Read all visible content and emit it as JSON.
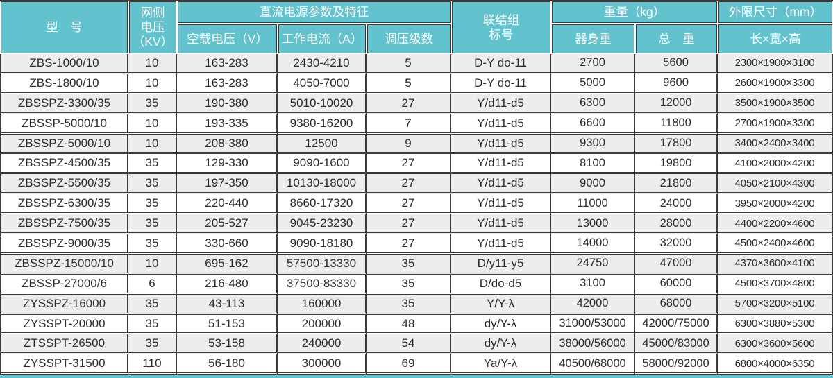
{
  "colors": {
    "header_bg": "#62C3CE",
    "header_text": "#FFFFFF",
    "row_alt_bg": "#EDEDED",
    "row_bg": "#FFFFFF",
    "border": "#3A3A3A",
    "body_text": "#2B2B2B",
    "accent_strip": "#62C3CE"
  },
  "table": {
    "header": {
      "model": "型　号",
      "grid_voltage": "网侧\n电压\n（KV）",
      "dc_group": "直流电源参数及特征",
      "no_load_voltage": "空载电压（V）",
      "working_current": "工作电流（A）",
      "regulation_steps": "调压级数",
      "connection_group": "联结组\n标号",
      "weight_group": "重量（kg）",
      "body_weight": "器身重",
      "total_weight": "总　重",
      "dimensions_group": "外限尺寸（mm）",
      "dimensions": "长×宽×高"
    },
    "rows": [
      {
        "model": "ZBS-1000/10",
        "grid_voltage": "10",
        "no_load_voltage": "163-283",
        "working_current": "2430-4210",
        "regulation_steps": "5",
        "connection_group": "D-Y do-11",
        "body_weight": "2700",
        "total_weight": "5600",
        "dimensions": "2300×1900×3100"
      },
      {
        "model": "ZBS-1800/10",
        "grid_voltage": "10",
        "no_load_voltage": "163-283",
        "working_current": "4050-7000",
        "regulation_steps": "5",
        "connection_group": "D-Y do-11",
        "body_weight": "5000",
        "total_weight": "9600",
        "dimensions": "2600×1900×3300"
      },
      {
        "model": "ZBSSPZ-3300/35",
        "grid_voltage": "35",
        "no_load_voltage": "190-380",
        "working_current": "5010-10020",
        "regulation_steps": "27",
        "connection_group": "Y/d11-d5",
        "body_weight": "6300",
        "total_weight": "12000",
        "dimensions": "3500×1900×3500"
      },
      {
        "model": "ZBSSP-5000/10",
        "grid_voltage": "10",
        "no_load_voltage": "193-335",
        "working_current": "9380-16200",
        "regulation_steps": "7",
        "connection_group": "Y/d11-d5",
        "body_weight": "6600",
        "total_weight": "11800",
        "dimensions": "2700×1900×3300"
      },
      {
        "model": "ZBSSPZ-5000/10",
        "grid_voltage": "10",
        "no_load_voltage": "208-380",
        "working_current": "12500",
        "regulation_steps": "9",
        "connection_group": "Y/d11-d5",
        "body_weight": "9300",
        "total_weight": "17800",
        "dimensions": "3400×2400×3400"
      },
      {
        "model": "ZBSSPZ-4500/35",
        "grid_voltage": "35",
        "no_load_voltage": "129-330",
        "working_current": "9090-1600",
        "regulation_steps": "27",
        "connection_group": "Y/d11-d5",
        "body_weight": "8100",
        "total_weight": "19800",
        "dimensions": "4100×2000×4200"
      },
      {
        "model": "ZBSSPZ-5500/35",
        "grid_voltage": "35",
        "no_load_voltage": "197-350",
        "working_current": "10130-18000",
        "regulation_steps": "27",
        "connection_group": "Y/d11-d5",
        "body_weight": "9000",
        "total_weight": "21800",
        "dimensions": "4050×2100×4300"
      },
      {
        "model": "ZBSSPZ-6300/35",
        "grid_voltage": "35",
        "no_load_voltage": "220-440",
        "working_current": "8660-17320",
        "regulation_steps": "27",
        "connection_group": "Y/d11-d5",
        "body_weight": "11000",
        "total_weight": "24000",
        "dimensions": "3950×2000×4200"
      },
      {
        "model": "ZBSSPZ-7500/35",
        "grid_voltage": "35",
        "no_load_voltage": "205-527",
        "working_current": "9045-23230",
        "regulation_steps": "27",
        "connection_group": "Y/d11-d5",
        "body_weight": "13000",
        "total_weight": "28000",
        "dimensions": "4400×2200×4600"
      },
      {
        "model": "ZBSSPZ-9000/35",
        "grid_voltage": "35",
        "no_load_voltage": "330-660",
        "working_current": "9090-18180",
        "regulation_steps": "27",
        "connection_group": "Y/d11-d5",
        "body_weight": "14000",
        "total_weight": "32000",
        "dimensions": "4500×2400×4600"
      },
      {
        "model": "ZBSSPZ-15000/10",
        "grid_voltage": "10",
        "no_load_voltage": "695-162",
        "working_current": "57500-13330",
        "regulation_steps": "35",
        "connection_group": "D/y11-y5",
        "body_weight": "24750",
        "total_weight": "47000",
        "dimensions": "4370×3600×4100"
      },
      {
        "model": "ZBSSP-27000/6",
        "grid_voltage": "6",
        "no_load_voltage": "216-480",
        "working_current": "37500-83330",
        "regulation_steps": "35",
        "connection_group": "D/do-d5",
        "body_weight": "3100",
        "total_weight": "60000",
        "dimensions": "4500×3700×4800"
      },
      {
        "model": "ZYSSPZ-16000",
        "grid_voltage": "35",
        "no_load_voltage": "43-113",
        "working_current": "160000",
        "regulation_steps": "35",
        "connection_group": "Y/Y-λ",
        "body_weight": "42000",
        "total_weight": "68000",
        "dimensions": "5700×3200×5100"
      },
      {
        "model": "ZYSSPT-20000",
        "grid_voltage": "35",
        "no_load_voltage": "51-153",
        "working_current": "200000",
        "regulation_steps": "48",
        "connection_group": "dy/Y-λ",
        "body_weight": "31000/53000",
        "total_weight": "42000/75000",
        "dimensions": "6300×3880×5300"
      },
      {
        "model": "ZTSSPT-26500",
        "grid_voltage": "35",
        "no_load_voltage": "53-158",
        "working_current": "240000",
        "regulation_steps": "54",
        "connection_group": "dy/Y-λ",
        "body_weight": "38000/56000",
        "total_weight": "45000/83000",
        "dimensions": "6300×3600×5600"
      },
      {
        "model": "ZYSSPT-31500",
        "grid_voltage": "110",
        "no_load_voltage": "56-180",
        "working_current": "300000",
        "regulation_steps": "69",
        "connection_group": "Ya/Y-λ",
        "body_weight": "40500/68000",
        "total_weight": "58000/92000",
        "dimensions": "6800×4000×6350"
      }
    ]
  }
}
